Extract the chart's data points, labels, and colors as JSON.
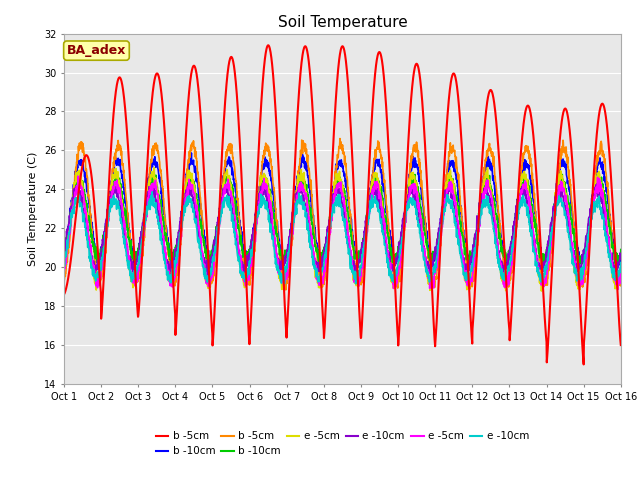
{
  "title": "Soil Temperature",
  "ylabel": "Soil Temperature (C)",
  "xlabel": "",
  "annotation": "BA_adex",
  "ylim": [
    14,
    32
  ],
  "yticks": [
    14,
    16,
    18,
    20,
    22,
    24,
    26,
    28,
    30,
    32
  ],
  "x_labels": [
    "Oct 1",
    "Oct 2",
    "Oct 3",
    "Oct 4",
    "Oct 5",
    "Oct 6",
    "Oct 7",
    "Oct 8",
    "Oct 9",
    "Oct 10",
    "Oct 11",
    "Oct 12",
    "Oct 13",
    "Oct 14",
    "Oct 15",
    "Oct 16"
  ],
  "series": [
    {
      "label": "b -5cm",
      "color": "#FF0000",
      "lw": 1.5
    },
    {
      "label": "b -10cm",
      "color": "#0000FF",
      "lw": 1.2
    },
    {
      "label": "b -5cm",
      "color": "#FF8800",
      "lw": 1.2
    },
    {
      "label": "b -10cm",
      "color": "#00CC00",
      "lw": 1.2
    },
    {
      "label": "e -5cm",
      "color": "#DDDD00",
      "lw": 1.2
    },
    {
      "label": "e -10cm",
      "color": "#8800CC",
      "lw": 1.2
    },
    {
      "label": "e -5cm",
      "color": "#FF00FF",
      "lw": 1.2
    },
    {
      "label": "e -10cm",
      "color": "#00CCCC",
      "lw": 1.2
    }
  ],
  "bg_color": "#E8E8E8",
  "title_fontsize": 11,
  "axis_fontsize": 8,
  "tick_fontsize": 7,
  "annotation_fontsize": 9
}
